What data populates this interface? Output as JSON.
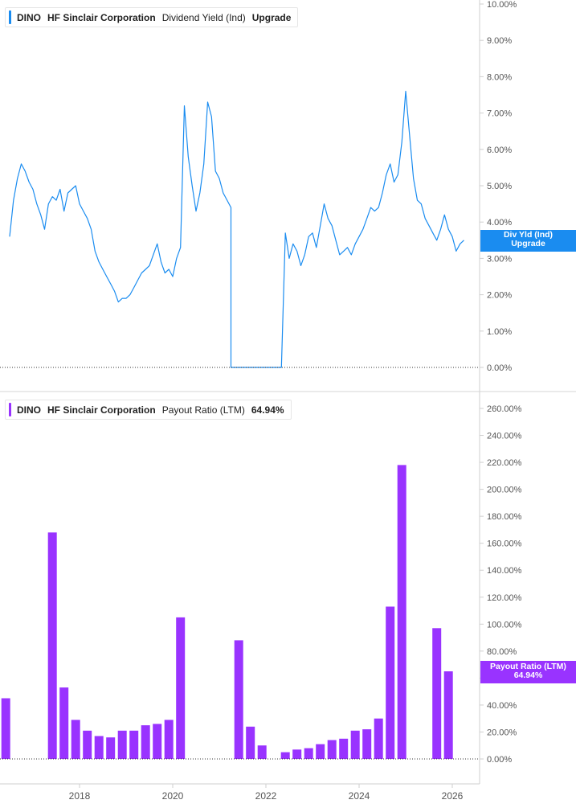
{
  "top_legend": {
    "ticker": "DINO",
    "company": "HF Sinclair Corporation",
    "metric": "Dividend Yield (Ind)",
    "value": "Upgrade",
    "color": "#1a8cf0"
  },
  "bottom_legend": {
    "ticker": "DINO",
    "company": "HF Sinclair Corporation",
    "metric": "Payout Ratio (LTM)",
    "value": "64.94%",
    "color": "#9933ff"
  },
  "top_tag": {
    "line1": "Div Yld (Ind)",
    "line2": "Upgrade"
  },
  "bottom_tag": {
    "line1": "Payout Ratio (LTM)",
    "line2": "64.94%"
  },
  "chart_data": [
    {
      "type": "line",
      "series": [
        {
          "name": "Dividend Yield (Ind)",
          "x": [
            "2016-07",
            "2016-08",
            "2016-09",
            "2016-10",
            "2016-11",
            "2016-12",
            "2017-01",
            "2017-02",
            "2017-03",
            "2017-04",
            "2017-05",
            "2017-06",
            "2017-07",
            "2017-08",
            "2017-09",
            "2017-10",
            "2017-11",
            "2017-12",
            "2018-01",
            "2018-02",
            "2018-03",
            "2018-04",
            "2018-05",
            "2018-06",
            "2018-07",
            "2018-08",
            "2018-09",
            "2018-10",
            "2018-11",
            "2018-12",
            "2019-01",
            "2019-02",
            "2019-03",
            "2019-04",
            "2019-05",
            "2019-06",
            "2019-07",
            "2019-08",
            "2019-09",
            "2019-10",
            "2019-11",
            "2019-12",
            "2020-01",
            "2020-02",
            "2020-03",
            "2020-04",
            "2020-05",
            "2020-06",
            "2020-07",
            "2020-08",
            "2020-09",
            "2020-10",
            "2020-11",
            "2020-12",
            "2021-01",
            "2021-02",
            "2021-03",
            "2021-04",
            "2022-05",
            "2022-06",
            "2022-07",
            "2022-08",
            "2022-09",
            "2022-10",
            "2022-11",
            "2022-12",
            "2023-01",
            "2023-02",
            "2023-03",
            "2023-04",
            "2023-05",
            "2023-06",
            "2023-07",
            "2023-08",
            "2023-09",
            "2023-10",
            "2023-11",
            "2023-12",
            "2024-01",
            "2024-02",
            "2024-03",
            "2024-04",
            "2024-05",
            "2024-06",
            "2024-07",
            "2024-08",
            "2024-09",
            "2024-10",
            "2024-11",
            "2024-12",
            "2025-01",
            "2025-02",
            "2025-03",
            "2025-04",
            "2025-05",
            "2025-06",
            "2025-07",
            "2025-08",
            "2025-09",
            "2025-10",
            "2025-11",
            "2025-12",
            "2026-01",
            "2026-02",
            "2026-03",
            "2026-04"
          ],
          "values": [
            3.6,
            4.6,
            5.2,
            5.6,
            5.4,
            5.1,
            4.9,
            4.5,
            4.2,
            3.8,
            4.5,
            4.7,
            4.6,
            4.9,
            4.3,
            4.8,
            4.9,
            5.0,
            4.5,
            4.3,
            4.1,
            3.8,
            3.2,
            2.9,
            2.7,
            2.5,
            2.3,
            2.1,
            1.8,
            1.9,
            1.9,
            2.0,
            2.2,
            2.4,
            2.6,
            2.7,
            2.8,
            3.1,
            3.4,
            2.9,
            2.6,
            2.7,
            2.5,
            3.0,
            3.3,
            7.2,
            5.8,
            5.0,
            4.3,
            4.8,
            5.6,
            7.3,
            6.9,
            5.4,
            5.2,
            4.8,
            4.6,
            4.4,
            0.0,
            3.7,
            3.0,
            3.4,
            3.2,
            2.8,
            3.1,
            3.6,
            3.7,
            3.3,
            3.9,
            4.5,
            4.1,
            3.9,
            3.5,
            3.1,
            3.2,
            3.3,
            3.1,
            3.4,
            3.6,
            3.8,
            4.1,
            4.4,
            4.3,
            4.4,
            4.8,
            5.3,
            5.6,
            5.1,
            5.3,
            6.2,
            7.6,
            6.4,
            5.2,
            4.6,
            4.5,
            4.1,
            3.9,
            3.7,
            3.5,
            3.8,
            4.2,
            3.8,
            3.6,
            3.2,
            3.4,
            3.5
          ]
        }
      ],
      "ylim": [
        0,
        10
      ],
      "y_ticks": [
        "0.00%",
        "1.00%",
        "2.00%",
        "3.00%",
        "4.00%",
        "5.00%",
        "6.00%",
        "7.00%",
        "8.00%",
        "9.00%",
        "10.00%"
      ],
      "grid": false
    },
    {
      "type": "bar",
      "series": [
        {
          "name": "Payout Ratio (LTM)",
          "categories": [
            "2016-06",
            "2017-06",
            "2017-09",
            "2017-12",
            "2018-03",
            "2018-06",
            "2018-09",
            "2018-12",
            "2019-03",
            "2019-06",
            "2019-09",
            "2019-12",
            "2020-03",
            "2021-06",
            "2021-09",
            "2021-12",
            "2022-06",
            "2022-09",
            "2022-12",
            "2023-03",
            "2023-06",
            "2023-09",
            "2023-12",
            "2024-03",
            "2024-06",
            "2024-09",
            "2024-12",
            "2025-03",
            "2025-09",
            "2025-12"
          ],
          "values": [
            45,
            168,
            53,
            29,
            21,
            17,
            16,
            21,
            21,
            25,
            26,
            29,
            105,
            88,
            24,
            10,
            5,
            7,
            8,
            11,
            14,
            15,
            21,
            22,
            30,
            113,
            218,
            0,
            97,
            65
          ]
        }
      ],
      "ylim": [
        0,
        260
      ],
      "y_ticks": [
        "0.00%",
        "20.00%",
        "40.00%",
        "60.00%",
        "80.00%",
        "100.00%",
        "120.00%",
        "140.00%",
        "160.00%",
        "180.00%",
        "200.00%",
        "220.00%",
        "240.00%",
        "260.00%"
      ],
      "x_ticks": [
        "2018",
        "2020",
        "2022",
        "2024",
        "2026"
      ],
      "grid": false
    }
  ]
}
